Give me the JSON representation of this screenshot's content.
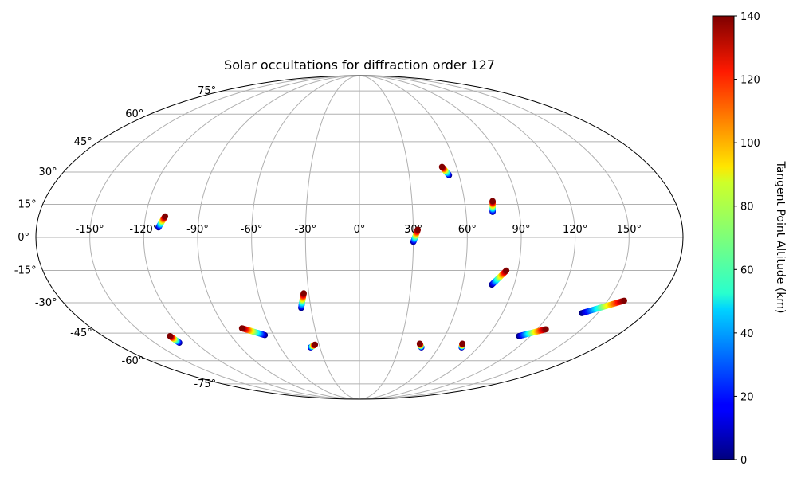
{
  "chart_data": {
    "type": "scatter",
    "projection": "mollweide",
    "title": "Solar occultations for diffraction order 127",
    "grid": true,
    "longitude_ticks": [
      {
        "value": -150,
        "label": "-150°"
      },
      {
        "value": -120,
        "label": "-120°"
      },
      {
        "value": -90,
        "label": "-90°"
      },
      {
        "value": -60,
        "label": "-60°"
      },
      {
        "value": -30,
        "label": "-30°"
      },
      {
        "value": 0,
        "label": "0°"
      },
      {
        "value": 30,
        "label": "30°"
      },
      {
        "value": 60,
        "label": "60°"
      },
      {
        "value": 90,
        "label": "90°"
      },
      {
        "value": 120,
        "label": "120°"
      },
      {
        "value": 150,
        "label": "150°"
      }
    ],
    "latitude_ticks": [
      {
        "value": 75,
        "label": "75°"
      },
      {
        "value": 60,
        "label": "60°"
      },
      {
        "value": 45,
        "label": "45°"
      },
      {
        "value": 30,
        "label": "30°"
      },
      {
        "value": 15,
        "label": "15°"
      },
      {
        "value": 0,
        "label": "0°"
      },
      {
        "value": -15,
        "label": "-15°"
      },
      {
        "value": -30,
        "label": "-30°"
      },
      {
        "value": -45,
        "label": "-45°"
      },
      {
        "value": -60,
        "label": "-60°"
      },
      {
        "value": -75,
        "label": "-75°"
      }
    ],
    "colorbar": {
      "label": "Tangent Point Altitude (km)",
      "colormap": "jet",
      "range": [
        0,
        140
      ],
      "ticks": [
        {
          "value": 0,
          "label": "0"
        },
        {
          "value": 20,
          "label": "20"
        },
        {
          "value": 40,
          "label": "40"
        },
        {
          "value": 60,
          "label": "60"
        },
        {
          "value": 80,
          "label": "80"
        },
        {
          "value": 100,
          "label": "100"
        },
        {
          "value": 120,
          "label": "120"
        },
        {
          "value": 140,
          "label": "140"
        }
      ]
    },
    "occultations": [
      {
        "lon_low": -112,
        "lat_low": 4.5,
        "lon_high": -109,
        "lat_high": 9.5
      },
      {
        "lon_low": 54,
        "lat_low": 28.5,
        "lon_high": 51,
        "lat_high": 32.5
      },
      {
        "lon_low": 75,
        "lat_low": 11.5,
        "lon_high": 76,
        "lat_high": 16.5
      },
      {
        "lon_low": 30,
        "lat_low": -2,
        "lon_high": 32.5,
        "lat_high": 3.5
      },
      {
        "lon_low": 77,
        "lat_low": -21.5,
        "lon_high": 83.5,
        "lat_high": -15
      },
      {
        "lon_low": -36,
        "lat_low": -32.5,
        "lon_high": -33,
        "lat_high": -25.5
      },
      {
        "lon_low": 140,
        "lat_low": -35,
        "lon_high": 160,
        "lat_high": -29
      },
      {
        "lon_low": -66,
        "lat_low": -46,
        "lon_high": -79,
        "lat_high": -42.5
      },
      {
        "lon_low": 112,
        "lat_low": -46.5,
        "lon_high": 126,
        "lat_high": -43
      },
      {
        "lon_low": -132,
        "lat_low": -50,
        "lon_high": -133,
        "lat_high": -46.5
      },
      {
        "lon_low": -37,
        "lat_low": -52.5,
        "lon_high": -33,
        "lat_high": -51
      },
      {
        "lon_low": 47,
        "lat_low": -52.5,
        "lon_high": 44.5,
        "lat_high": -50.5
      },
      {
        "lon_low": 77.5,
        "lat_low": -52.5,
        "lon_high": 76,
        "lat_high": -50.5
      }
    ]
  }
}
